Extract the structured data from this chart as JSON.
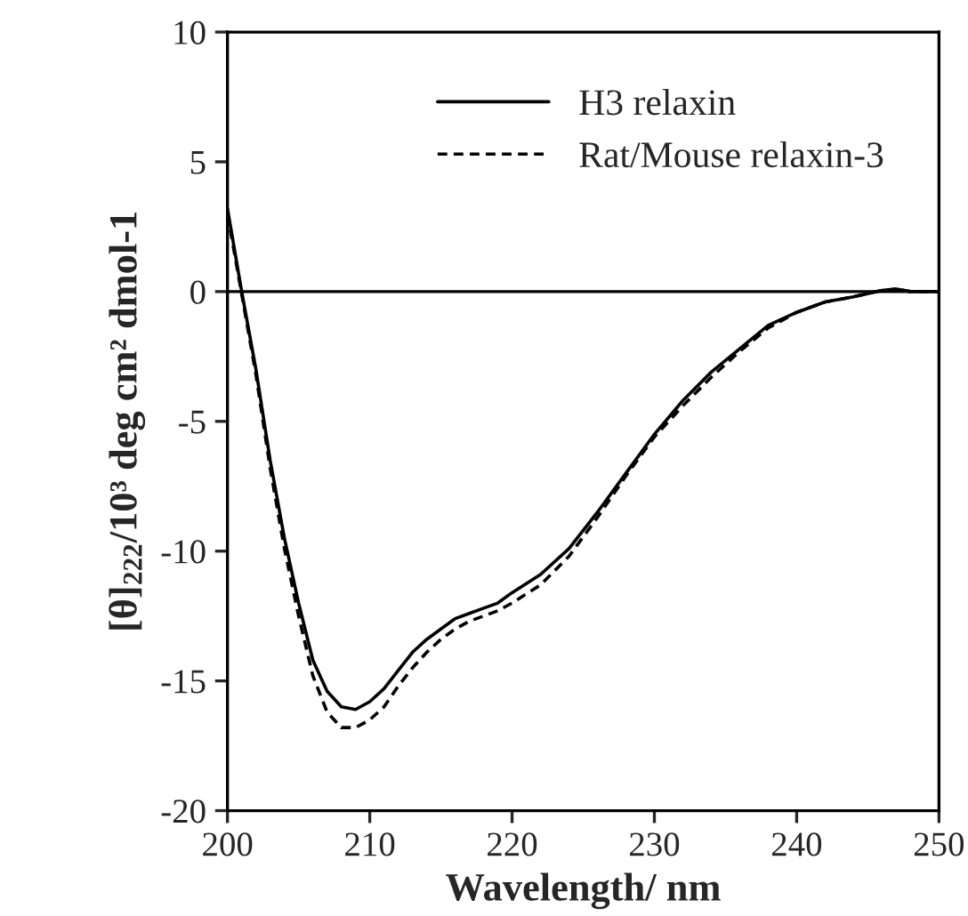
{
  "chart_data": {
    "type": "line",
    "xlabel": "Wavelength/ nm",
    "ylabel": "[θ]$_{222}$/10³ deg cm² dmol-1",
    "x": [
      200,
      201,
      202,
      203,
      204,
      205,
      206,
      207,
      208,
      209,
      210,
      211,
      212,
      213,
      214,
      215,
      216,
      217,
      218,
      219,
      220,
      222,
      224,
      226,
      228,
      230,
      232,
      234,
      236,
      238,
      240,
      242,
      244,
      246,
      247,
      248,
      250
    ],
    "series": [
      {
        "name": "H3 relaxin",
        "color": "#000000",
        "line_style": "solid",
        "values": [
          3.2,
          0.0,
          -3.0,
          -6.5,
          -9.5,
          -12.0,
          -14.2,
          -15.4,
          -16.0,
          -16.1,
          -15.8,
          -15.3,
          -14.6,
          -13.9,
          -13.4,
          -13.0,
          -12.6,
          -12.4,
          -12.2,
          -12.0,
          -11.6,
          -10.9,
          -9.9,
          -8.5,
          -7.0,
          -5.5,
          -4.2,
          -3.1,
          -2.2,
          -1.3,
          -0.8,
          -0.4,
          -0.2,
          0.05,
          0.1,
          0.0,
          0.0
        ]
      },
      {
        "name": "Rat/Mouse relaxin-3",
        "color": "#000000",
        "line_style": "dashed",
        "values": [
          3.0,
          -0.1,
          -3.2,
          -6.8,
          -9.9,
          -12.5,
          -14.8,
          -16.2,
          -16.8,
          -16.8,
          -16.5,
          -16.0,
          -15.2,
          -14.5,
          -13.9,
          -13.4,
          -13.0,
          -12.7,
          -12.5,
          -12.3,
          -12.0,
          -11.3,
          -10.2,
          -8.7,
          -7.1,
          -5.6,
          -4.4,
          -3.3,
          -2.3,
          -1.4,
          -0.8,
          -0.4,
          -0.2,
          0.05,
          0.1,
          0.0,
          0.0
        ]
      }
    ],
    "xlim": [
      200,
      250
    ],
    "xticks": [
      200,
      210,
      220,
      230,
      240,
      250
    ],
    "ylim": [
      -20,
      10
    ],
    "yticks": [
      -20,
      -15,
      -10,
      -5,
      0,
      5,
      10
    ],
    "ref_lines": [
      {
        "axis": "y",
        "value": 0,
        "color": "#000000"
      }
    ],
    "grid": false,
    "legend": "top right",
    "marker": "none"
  }
}
